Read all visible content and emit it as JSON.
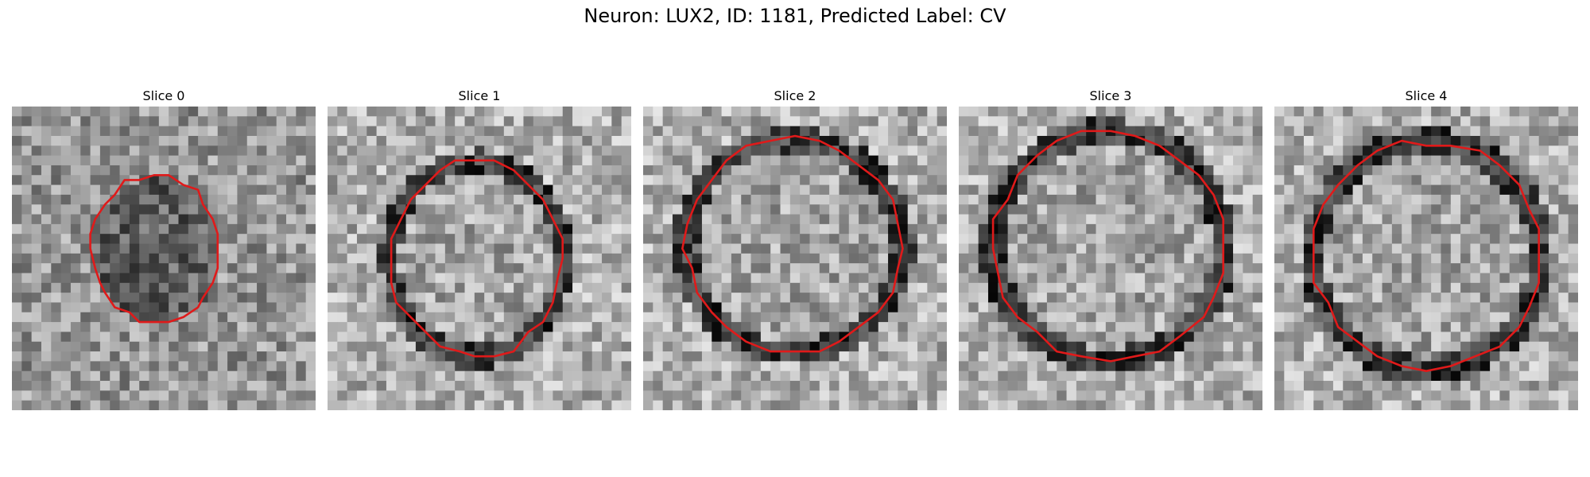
{
  "title": "Neuron: LUX2, ID: 1181, Predicted Label: CV",
  "colors": {
    "contour": "#e01a1a"
  },
  "slices": [
    {
      "label": "Slice 0"
    },
    {
      "label": "Slice 1"
    },
    {
      "label": "Slice 2"
    },
    {
      "label": "Slice 3"
    },
    {
      "label": "Slice 4"
    }
  ]
}
